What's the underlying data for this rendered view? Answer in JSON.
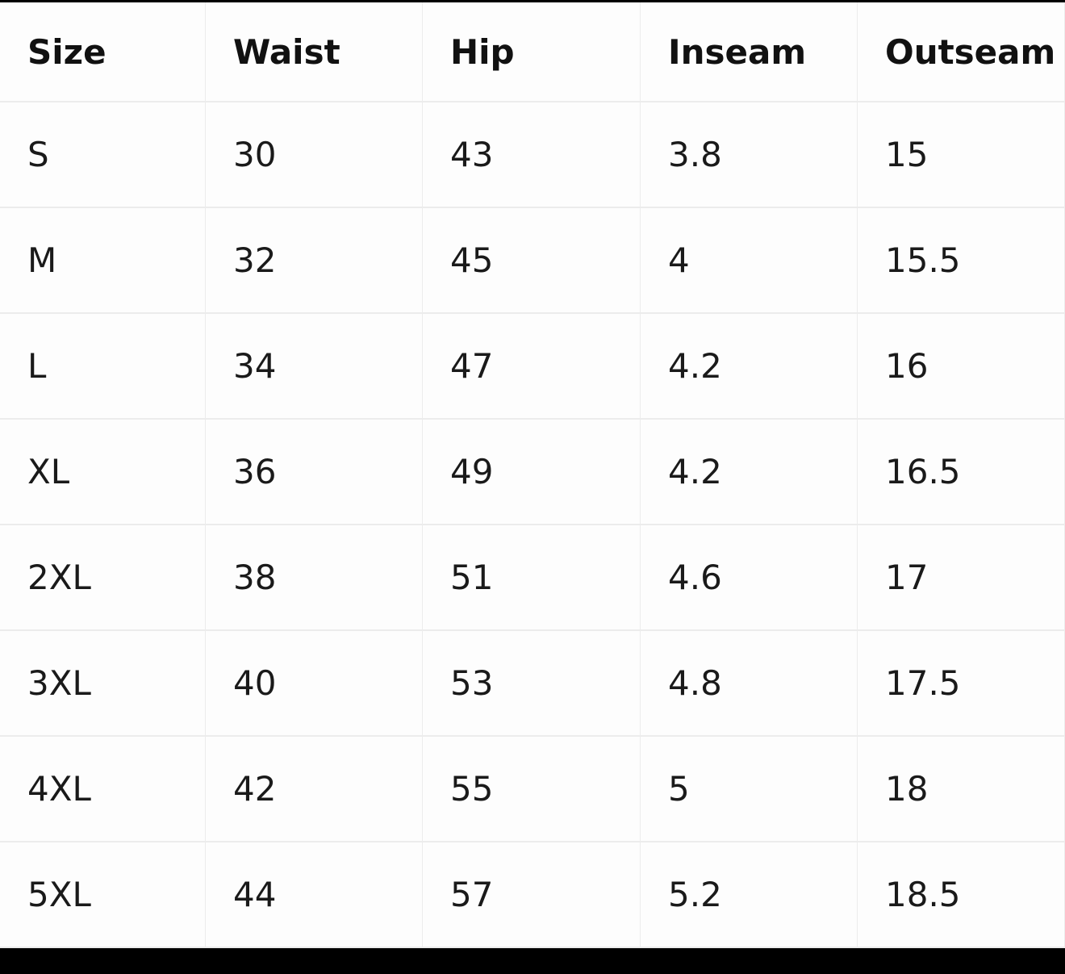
{
  "table": {
    "header": [
      "Size",
      "Waist",
      "Hip",
      "Inseam",
      "Outseam"
    ],
    "rows": [
      [
        "S",
        "30",
        "43",
        "3.8",
        "15"
      ],
      [
        "M",
        "32",
        "45",
        "4",
        "15.5"
      ],
      [
        "L",
        "34",
        "47",
        "4.2",
        "16"
      ],
      [
        "XL",
        "36",
        "49",
        "4.2",
        "16.5"
      ],
      [
        "2XL",
        "38",
        "51",
        "4.6",
        "17"
      ],
      [
        "3XL",
        "40",
        "53",
        "4.8",
        "17.5"
      ],
      [
        "4XL",
        "42",
        "55",
        "5",
        "18"
      ],
      [
        "5XL",
        "44",
        "57",
        "5.2",
        "18.5"
      ]
    ]
  }
}
